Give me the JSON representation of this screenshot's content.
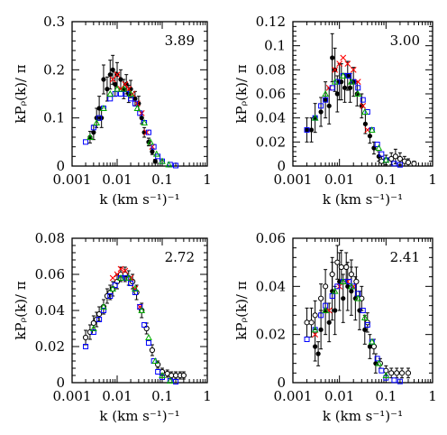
{
  "chart_data": [
    {
      "type": "scatter",
      "title": "",
      "annotation": "3.89",
      "xscale": "log",
      "xlim": [
        0.001,
        1
      ],
      "ylim": [
        0,
        0.3
      ],
      "xticks": [
        "0.001",
        "0.01",
        "0.1",
        "1"
      ],
      "yticks": [
        "0",
        "0.1",
        "0.2",
        "0.3"
      ],
      "xlabel": "k (km s⁻¹)⁻¹",
      "ylabel": "kPᵨ(k)/ π",
      "series": [
        {
          "marker": "filled-circle",
          "color": "#000000",
          "x": [
            0.0025,
            0.003,
            0.0035,
            0.004,
            0.0045,
            0.005,
            0.006,
            0.007,
            0.008,
            0.009,
            0.01,
            0.012,
            0.014,
            0.016,
            0.018,
            0.02,
            0.025,
            0.03,
            0.035,
            0.04,
            0.05,
            0.06,
            0.07
          ],
          "y": [
            0.06,
            0.07,
            0.1,
            0.12,
            0.1,
            0.18,
            0.16,
            0.19,
            0.2,
            0.17,
            0.19,
            0.18,
            0.16,
            0.17,
            0.15,
            0.16,
            0.14,
            0.13,
            0.1,
            0.07,
            0.05,
            0.03,
            0.01
          ],
          "err": [
            0.012,
            0.015,
            0.02,
            0.025,
            0.02,
            0.03,
            0.025,
            0.03,
            0.03,
            0.025,
            0.025,
            0.02,
            0.02,
            0.02,
            0.018,
            0.018,
            0.015,
            0.015,
            0.012,
            0.01,
            0.008,
            0.006,
            0.004
          ]
        },
        {
          "marker": "cross",
          "color": "#ff0000",
          "x": [
            0.008,
            0.01,
            0.012,
            0.015,
            0.018,
            0.022,
            0.028,
            0.035,
            0.045,
            0.06
          ],
          "y": [
            0.18,
            0.19,
            0.16,
            0.17,
            0.16,
            0.15,
            0.13,
            0.11,
            0.07,
            0.04
          ]
        },
        {
          "marker": "open-square",
          "color": "#0000ff",
          "x": [
            0.002,
            0.003,
            0.004,
            0.005,
            0.007,
            0.009,
            0.012,
            0.016,
            0.02,
            0.025,
            0.032,
            0.04,
            0.05,
            0.065,
            0.08,
            0.1,
            0.15,
            0.2
          ],
          "y": [
            0.05,
            0.08,
            0.1,
            0.12,
            0.14,
            0.15,
            0.15,
            0.15,
            0.14,
            0.13,
            0.11,
            0.09,
            0.07,
            0.04,
            0.02,
            0.01,
            0.003,
            0.001
          ]
        },
        {
          "marker": "open-triangle",
          "color": "#00aa00",
          "x": [
            0.0025,
            0.0035,
            0.005,
            0.007,
            0.01,
            0.014,
            0.02,
            0.028,
            0.04,
            0.055,
            0.075,
            0.1,
            0.14
          ],
          "y": [
            0.06,
            0.09,
            0.12,
            0.15,
            0.16,
            0.16,
            0.15,
            0.12,
            0.09,
            0.05,
            0.025,
            0.01,
            0.003
          ]
        }
      ]
    },
    {
      "type": "scatter",
      "title": "",
      "annotation": "3.00",
      "xscale": "log",
      "xlim": [
        0.001,
        1
      ],
      "ylim": [
        0,
        0.12
      ],
      "xticks": [
        "0.001",
        "0.01",
        "0.1",
        "1"
      ],
      "yticks": [
        "0",
        "0.02",
        "0.04",
        "0.06",
        "0.08",
        "0.1",
        "0.12"
      ],
      "xlabel": "k (km s⁻¹)⁻¹",
      "ylabel": "kPᵨ(k)/ π",
      "series": [
        {
          "marker": "filled-circle",
          "color": "#000000",
          "x": [
            0.002,
            0.0025,
            0.003,
            0.004,
            0.005,
            0.006,
            0.007,
            0.008,
            0.009,
            0.01,
            0.011,
            0.013,
            0.015,
            0.017,
            0.02,
            0.024,
            0.03,
            0.036,
            0.045,
            0.055,
            0.07
          ],
          "y": [
            0.03,
            0.03,
            0.04,
            0.045,
            0.055,
            0.05,
            0.09,
            0.08,
            0.06,
            0.07,
            0.07,
            0.065,
            0.075,
            0.065,
            0.07,
            0.06,
            0.05,
            0.035,
            0.025,
            0.015,
            0.008
          ],
          "err": [
            0.01,
            0.01,
            0.012,
            0.012,
            0.015,
            0.015,
            0.02,
            0.018,
            0.015,
            0.015,
            0.015,
            0.012,
            0.012,
            0.012,
            0.012,
            0.01,
            0.01,
            0.008,
            0.006,
            0.005,
            0.004
          ]
        },
        {
          "marker": "open-circle",
          "color": "#000000",
          "x": [
            0.08,
            0.1,
            0.13,
            0.16,
            0.2,
            0.25,
            0.3,
            0.4
          ],
          "y": [
            0.004,
            0.005,
            0.006,
            0.008,
            0.006,
            0.004,
            0.003,
            0.002
          ],
          "err": [
            0.004,
            0.004,
            0.005,
            0.006,
            0.005,
            0.004,
            0.003,
            0.002
          ]
        },
        {
          "marker": "cross",
          "color": "#ff0000",
          "x": [
            0.006,
            0.008,
            0.01,
            0.012,
            0.015,
            0.02,
            0.025,
            0.032,
            0.04
          ],
          "y": [
            0.065,
            0.08,
            0.085,
            0.09,
            0.085,
            0.08,
            0.07,
            0.05,
            0.03
          ]
        },
        {
          "marker": "open-square",
          "color": "#0000ff",
          "x": [
            0.002,
            0.003,
            0.004,
            0.005,
            0.007,
            0.009,
            0.012,
            0.016,
            0.02,
            0.025,
            0.032,
            0.04,
            0.05,
            0.065,
            0.08,
            0.1,
            0.15,
            0.2
          ],
          "y": [
            0.03,
            0.04,
            0.05,
            0.055,
            0.065,
            0.07,
            0.075,
            0.075,
            0.07,
            0.065,
            0.055,
            0.045,
            0.03,
            0.018,
            0.01,
            0.005,
            0.002,
            0.001
          ]
        },
        {
          "marker": "open-triangle",
          "color": "#00aa00",
          "x": [
            0.003,
            0.005,
            0.008,
            0.012,
            0.018,
            0.025,
            0.035,
            0.05,
            0.07,
            0.1
          ],
          "y": [
            0.04,
            0.06,
            0.07,
            0.075,
            0.07,
            0.06,
            0.045,
            0.03,
            0.015,
            0.005
          ]
        }
      ]
    },
    {
      "type": "scatter",
      "title": "",
      "annotation": "2.72",
      "xscale": "log",
      "xlim": [
        0.001,
        1
      ],
      "ylim": [
        0,
        0.08
      ],
      "xticks": [
        "0.001",
        "0.01",
        "0.1",
        "1"
      ],
      "yticks": [
        "0",
        "0.02",
        "0.04",
        "0.06",
        "0.08"
      ],
      "xlabel": "k (km s⁻¹)⁻¹",
      "ylabel": "kPᵨ(k)/ π",
      "series": [
        {
          "marker": "open-circle",
          "color": "#000000",
          "x": [
            0.002,
            0.0025,
            0.003,
            0.0035,
            0.004,
            0.005,
            0.006,
            0.007,
            0.008,
            0.01,
            0.012,
            0.015,
            0.018,
            0.022,
            0.027,
            0.035,
            0.045,
            0.06,
            0.08,
            0.1,
            0.13,
            0.16,
            0.2,
            0.25,
            0.3
          ],
          "y": [
            0.025,
            0.028,
            0.033,
            0.035,
            0.038,
            0.042,
            0.048,
            0.05,
            0.052,
            0.056,
            0.06,
            0.06,
            0.058,
            0.056,
            0.05,
            0.04,
            0.03,
            0.018,
            0.01,
            0.006,
            0.005,
            0.004,
            0.004,
            0.004,
            0.004
          ],
          "err": [
            0.004,
            0.004,
            0.004,
            0.004,
            0.004,
            0.004,
            0.004,
            0.004,
            0.004,
            0.004,
            0.004,
            0.004,
            0.004,
            0.004,
            0.004,
            0.004,
            0.003,
            0.003,
            0.002,
            0.002,
            0.002,
            0.002,
            0.002,
            0.002,
            0.002
          ]
        },
        {
          "marker": "cross",
          "color": "#ff0000",
          "x": [
            0.008,
            0.01,
            0.012,
            0.015,
            0.02,
            0.025,
            0.032
          ],
          "y": [
            0.058,
            0.06,
            0.063,
            0.062,
            0.058,
            0.052,
            0.042
          ]
        },
        {
          "marker": "open-square",
          "color": "#0000ff",
          "x": [
            0.002,
            0.003,
            0.004,
            0.005,
            0.007,
            0.009,
            0.012,
            0.016,
            0.02,
            0.025,
            0.032,
            0.04,
            0.05,
            0.065,
            0.08,
            0.1,
            0.15,
            0.2
          ],
          "y": [
            0.02,
            0.028,
            0.035,
            0.04,
            0.048,
            0.054,
            0.058,
            0.058,
            0.055,
            0.05,
            0.042,
            0.032,
            0.022,
            0.012,
            0.006,
            0.003,
            0.001,
            0.0005
          ]
        },
        {
          "marker": "open-triangle",
          "color": "#00aa00",
          "x": [
            0.003,
            0.005,
            0.008,
            0.012,
            0.018,
            0.025,
            0.035,
            0.05,
            0.07,
            0.1,
            0.15
          ],
          "y": [
            0.03,
            0.042,
            0.052,
            0.058,
            0.058,
            0.052,
            0.04,
            0.025,
            0.012,
            0.004,
            0.001
          ]
        }
      ]
    },
    {
      "type": "scatter",
      "title": "",
      "annotation": "2.41",
      "xscale": "log",
      "xlim": [
        0.001,
        1
      ],
      "ylim": [
        0,
        0.06
      ],
      "xticks": [
        "0.001",
        "0.01",
        "0.1",
        "1"
      ],
      "yticks": [
        "0",
        "0.02",
        "0.04",
        "0.06"
      ],
      "xlabel": "k (km s⁻¹)⁻¹",
      "ylabel": "kPᵨ(k)/ π",
      "series": [
        {
          "marker": "filled-circle",
          "color": "#000000",
          "x": [
            0.003,
            0.0035,
            0.004,
            0.005,
            0.006,
            0.007,
            0.008,
            0.01,
            0.012,
            0.015,
            0.018,
            0.022,
            0.027,
            0.035,
            0.045,
            0.06
          ],
          "y": [
            0.015,
            0.012,
            0.022,
            0.03,
            0.025,
            0.038,
            0.03,
            0.042,
            0.035,
            0.04,
            0.038,
            0.035,
            0.03,
            0.022,
            0.015,
            0.008
          ],
          "err": [
            0.006,
            0.005,
            0.008,
            0.01,
            0.008,
            0.012,
            0.01,
            0.012,
            0.01,
            0.01,
            0.01,
            0.009,
            0.008,
            0.006,
            0.005,
            0.004
          ]
        },
        {
          "marker": "open-circle",
          "color": "#000000",
          "x": [
            0.002,
            0.0025,
            0.003,
            0.004,
            0.005,
            0.007,
            0.009,
            0.011,
            0.014,
            0.018,
            0.023,
            0.03,
            0.04,
            0.055,
            0.075,
            0.1,
            0.13,
            0.17,
            0.22,
            0.3
          ],
          "y": [
            0.025,
            0.025,
            0.028,
            0.035,
            0.04,
            0.045,
            0.05,
            0.048,
            0.048,
            0.045,
            0.042,
            0.035,
            0.025,
            0.015,
            0.008,
            0.005,
            0.004,
            0.004,
            0.004,
            0.004
          ],
          "err": [
            0.006,
            0.006,
            0.006,
            0.006,
            0.007,
            0.007,
            0.007,
            0.007,
            0.006,
            0.006,
            0.006,
            0.005,
            0.004,
            0.003,
            0.002,
            0.002,
            0.002,
            0.002,
            0.002,
            0.002
          ]
        },
        {
          "marker": "cross",
          "color": "#ff0000",
          "x": [
            0.003,
            0.006,
            0.01,
            0.015,
            0.02
          ],
          "y": [
            0.02,
            0.03,
            0.04,
            0.042,
            0.04
          ]
        },
        {
          "marker": "open-square",
          "color": "#0000ff",
          "x": [
            0.002,
            0.003,
            0.004,
            0.005,
            0.007,
            0.009,
            0.012,
            0.016,
            0.02,
            0.025,
            0.032,
            0.04,
            0.05,
            0.065,
            0.08,
            0.1,
            0.15,
            0.2
          ],
          "y": [
            0.018,
            0.022,
            0.028,
            0.032,
            0.036,
            0.04,
            0.042,
            0.042,
            0.04,
            0.037,
            0.03,
            0.024,
            0.017,
            0.01,
            0.005,
            0.002,
            0.001,
            0.0005
          ]
        },
        {
          "marker": "open-triangle",
          "color": "#00aa00",
          "x": [
            0.003,
            0.005,
            0.008,
            0.012,
            0.018,
            0.025,
            0.035,
            0.05,
            0.07,
            0.1
          ],
          "y": [
            0.022,
            0.03,
            0.038,
            0.042,
            0.04,
            0.035,
            0.027,
            0.017,
            0.008,
            0.003
          ]
        }
      ]
    }
  ]
}
